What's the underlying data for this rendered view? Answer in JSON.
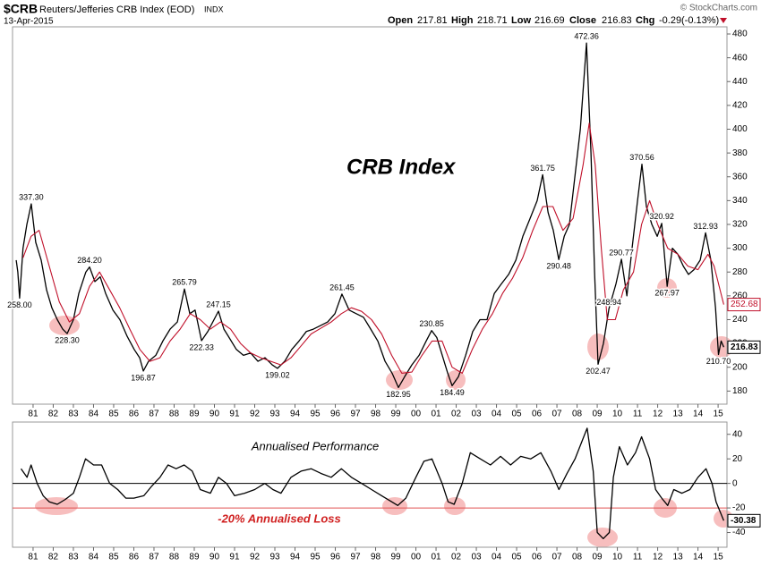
{
  "header": {
    "symbol": "$CRB",
    "name": "Reuters/Jefferies CRB Index (EOD)",
    "exchange": "INDX",
    "date": "13-Apr-2015",
    "open_label": "Open",
    "open": 217.81,
    "high_label": "High",
    "high": 218.71,
    "low_label": "Low",
    "low": 216.69,
    "close_label": "Close",
    "close": 216.83,
    "change_label": "Chg",
    "change": -0.29,
    "change_pct": {
      "value": -0.13,
      "label": "(-0.13%)"
    },
    "copyright": "© StockCharts.com"
  },
  "chart_data": [
    {
      "type": "line",
      "title": "CRB Index",
      "xlim": [
        1979.98,
        2015.44
      ],
      "ylim": [
        169,
        486
      ],
      "xticks": [
        {
          "value": 1981,
          "label": "81"
        },
        {
          "value": 1982,
          "label": "82"
        },
        {
          "value": 1983,
          "label": "83"
        },
        {
          "value": 1984,
          "label": "84"
        },
        {
          "value": 1985,
          "label": "85"
        },
        {
          "value": 1986,
          "label": "86"
        },
        {
          "value": 1987,
          "label": "87"
        },
        {
          "value": 1988,
          "label": "88"
        },
        {
          "value": 1989,
          "label": "89"
        },
        {
          "value": 1990,
          "label": "90"
        },
        {
          "value": 1991,
          "label": "91"
        },
        {
          "value": 1992,
          "label": "92"
        },
        {
          "value": 1993,
          "label": "93"
        },
        {
          "value": 1994,
          "label": "94"
        },
        {
          "value": 1995,
          "label": "95"
        },
        {
          "value": 1996,
          "label": "96"
        },
        {
          "value": 1997,
          "label": "97"
        },
        {
          "value": 1998,
          "label": "98"
        },
        {
          "value": 1999,
          "label": "99"
        },
        {
          "value": 2000,
          "label": "00"
        },
        {
          "value": 2001,
          "label": "01"
        },
        {
          "value": 2002,
          "label": "02"
        },
        {
          "value": 2003,
          "label": "03"
        },
        {
          "value": 2004,
          "label": "04"
        },
        {
          "value": 2005,
          "label": "05"
        },
        {
          "value": 2006,
          "label": "06"
        },
        {
          "value": 2007,
          "label": "07"
        },
        {
          "value": 2008,
          "label": "08"
        },
        {
          "value": 2009,
          "label": "09"
        },
        {
          "value": 2010,
          "label": "10"
        },
        {
          "value": 2011,
          "label": "11"
        },
        {
          "value": 2012,
          "label": "12"
        },
        {
          "value": 2013,
          "label": "13"
        },
        {
          "value": 2014,
          "label": "14"
        },
        {
          "value": 2015,
          "label": "15"
        }
      ],
      "yticks": [
        180,
        200,
        220,
        240,
        260,
        280,
        300,
        320,
        340,
        360,
        380,
        400,
        420,
        440,
        460,
        480
      ],
      "series": [
        {
          "color": "#000000",
          "x": [
            1980.16,
            1980.24,
            1980.33,
            1980.5,
            1980.69,
            1980.91,
            1981.13,
            1981.4,
            1981.67,
            1981.93,
            1982.2,
            1982.47,
            1982.69,
            1983.0,
            1983.27,
            1983.62,
            1983.8,
            1984.07,
            1984.33,
            1984.6,
            1984.96,
            1985.31,
            1985.67,
            1986.02,
            1986.29,
            1986.47,
            1986.73,
            1987.09,
            1987.44,
            1987.8,
            1988.16,
            1988.51,
            1988.78,
            1989.04,
            1989.36,
            1989.67,
            1990.2,
            1990.47,
            1990.73,
            1991.09,
            1991.44,
            1991.8,
            1992.16,
            1992.51,
            1992.87,
            1993.13,
            1993.49,
            1993.84,
            1994.2,
            1994.56,
            1994.91,
            1995.27,
            1995.62,
            1995.98,
            1996.33,
            1996.69,
            1997.04,
            1997.4,
            1997.76,
            1998.11,
            1998.47,
            1998.82,
            1999.13,
            1999.44,
            1999.8,
            2000.16,
            2000.51,
            2000.78,
            2001.04,
            2001.31,
            2001.58,
            2001.8,
            2002.11,
            2002.47,
            2002.82,
            2003.18,
            2003.53,
            2003.89,
            2004.24,
            2004.6,
            2004.96,
            2005.31,
            2005.67,
            2006.02,
            2006.29,
            2006.56,
            2006.82,
            2007.09,
            2007.36,
            2007.62,
            2007.89,
            2008.16,
            2008.47,
            2008.69,
            2008.87,
            2009.04,
            2009.31,
            2009.58,
            2009.93,
            2010.2,
            2010.47,
            2010.73,
            2011.0,
            2011.22,
            2011.44,
            2011.71,
            2011.98,
            2012.2,
            2012.47,
            2012.73,
            2013.0,
            2013.27,
            2013.53,
            2013.8,
            2014.11,
            2014.38,
            2014.64,
            2014.87,
            2015.02,
            2015.15,
            2015.28
          ],
          "values": [
            290,
            280,
            258,
            300,
            320,
            337.3,
            305,
            290,
            265,
            250,
            240,
            232,
            228.3,
            240,
            262,
            280,
            284.2,
            272,
            276,
            262,
            248,
            240,
            226,
            215,
            208,
            196.87,
            205,
            210,
            222,
            232,
            238,
            265.79,
            245,
            248,
            222.33,
            230,
            247.15,
            232,
            225,
            215,
            210,
            212,
            205,
            208,
            202,
            199.02,
            205,
            215,
            222,
            230,
            232,
            235,
            238,
            245,
            261.45,
            248,
            245,
            242,
            232,
            222,
            205,
            195,
            182.95,
            192,
            202,
            210,
            222,
            230.85,
            225,
            210,
            195,
            184.49,
            192,
            210,
            230,
            240,
            240,
            262,
            270,
            278,
            290,
            310,
            325,
            340,
            361.75,
            330,
            315,
            290.48,
            310,
            320,
            360,
            400,
            472.36,
            380,
            280,
            202.47,
            220,
            248.94,
            270,
            290.77,
            260,
            300,
            340,
            370.56,
            335,
            320,
            310,
            320.92,
            267.97,
            300,
            295,
            285,
            278,
            282,
            290,
            312.93,
            290,
            250,
            210.7,
            222,
            216.83
          ]
        },
        {
          "color": "#c0102a",
          "x": [
            1980.5,
            1980.9,
            1981.3,
            1981.8,
            1982.3,
            1982.8,
            1983.3,
            1983.8,
            1984.3,
            1984.8,
            1985.3,
            1985.8,
            1986.3,
            1986.8,
            1987.3,
            1987.8,
            1988.3,
            1988.8,
            1989.3,
            1989.8,
            1990.3,
            1990.8,
            1991.3,
            1991.8,
            1992.3,
            1992.8,
            1993.3,
            1993.8,
            1994.3,
            1994.8,
            1995.3,
            1995.8,
            1996.3,
            1996.8,
            1997.3,
            1997.8,
            1998.3,
            1998.8,
            1999.3,
            1999.8,
            2000.3,
            2000.8,
            2001.3,
            2001.8,
            2002.3,
            2002.8,
            2003.3,
            2003.8,
            2004.3,
            2004.8,
            2005.3,
            2005.8,
            2006.3,
            2006.8,
            2007.3,
            2007.8,
            2008.3,
            2008.6,
            2008.9,
            2009.2,
            2009.5,
            2009.9,
            2010.3,
            2010.8,
            2011.2,
            2011.6,
            2012.0,
            2012.5,
            2013.0,
            2013.5,
            2014.0,
            2014.5,
            2014.8,
            2015.28
          ],
          "values": [
            292,
            310,
            315,
            285,
            255,
            238,
            245,
            268,
            280,
            265,
            250,
            232,
            215,
            205,
            208,
            222,
            232,
            245,
            240,
            232,
            238,
            232,
            220,
            212,
            208,
            205,
            202,
            208,
            218,
            228,
            233,
            238,
            245,
            250,
            247,
            240,
            228,
            210,
            195,
            196,
            210,
            222,
            222,
            200,
            195,
            215,
            232,
            245,
            262,
            275,
            292,
            315,
            335,
            335,
            315,
            325,
            370,
            405,
            370,
            300,
            240,
            240,
            265,
            280,
            320,
            340,
            320,
            300,
            295,
            285,
            282,
            295,
            285,
            252.68
          ]
        }
      ],
      "extremes": {
        "x": [
          1980.33,
          1980.91,
          1982.69,
          1983.8,
          1986.47,
          1988.51,
          1989.36,
          1990.2,
          1993.13,
          1996.33,
          1999.13,
          2000.78,
          2001.8,
          2006.29,
          2007.09,
          2008.47,
          2009.04,
          2009.58,
          2010.2,
          2011.22,
          2012.2,
          2012.47,
          2014.38,
          2015.02
        ],
        "values": [
          258,
          337.3,
          228.3,
          284.2,
          196.87,
          265.79,
          222.33,
          247.15,
          199.02,
          261.45,
          182.95,
          230.85,
          184.49,
          361.75,
          290.48,
          472.36,
          202.47,
          248.94,
          290.77,
          370.56,
          320.92,
          267.97,
          312.93,
          210.7
        ],
        "value_labels": [
          "258.00",
          "337.30",
          "228.30",
          "284.20",
          "196.87",
          "265.79",
          "222.33",
          "247.15",
          "199.02",
          "261.45",
          "182.95",
          "230.85",
          "184.49",
          "361.75",
          "290.48",
          "472.36",
          "202.47",
          "248.94",
          "290.77",
          "370.56",
          "320.92",
          "267.97",
          "312.93",
          "210.70"
        ]
      }
    },
    {
      "type": "line",
      "title": "Annualised Performance",
      "annotation": "-20% Annualised Loss",
      "xlim": [
        1979.98,
        2015.44
      ],
      "ylim": [
        -52,
        50
      ],
      "xticks": [
        {
          "value": 1981,
          "label": "81"
        },
        {
          "value": 1982,
          "label": "82"
        },
        {
          "value": 1983,
          "label": "83"
        },
        {
          "value": 1984,
          "label": "84"
        },
        {
          "value": 1985,
          "label": "85"
        },
        {
          "value": 1986,
          "label": "86"
        },
        {
          "value": 1987,
          "label": "87"
        },
        {
          "value": 1988,
          "label": "88"
        },
        {
          "value": 1989,
          "label": "89"
        },
        {
          "value": 1990,
          "label": "90"
        },
        {
          "value": 1991,
          "label": "91"
        },
        {
          "value": 1992,
          "label": "92"
        },
        {
          "value": 1993,
          "label": "93"
        },
        {
          "value": 1994,
          "label": "94"
        },
        {
          "value": 1995,
          "label": "95"
        },
        {
          "value": 1996,
          "label": "96"
        },
        {
          "value": 1997,
          "label": "97"
        },
        {
          "value": 1998,
          "label": "98"
        },
        {
          "value": 1999,
          "label": "99"
        },
        {
          "value": 2000,
          "label": "00"
        },
        {
          "value": 2001,
          "label": "01"
        },
        {
          "value": 2002,
          "label": "02"
        },
        {
          "value": 2003,
          "label": "03"
        },
        {
          "value": 2004,
          "label": "04"
        },
        {
          "value": 2005,
          "label": "05"
        },
        {
          "value": 2006,
          "label": "06"
        },
        {
          "value": 2007,
          "label": "07"
        },
        {
          "value": 2008,
          "label": "08"
        },
        {
          "value": 2009,
          "label": "09"
        },
        {
          "value": 2010,
          "label": "10"
        },
        {
          "value": 2011,
          "label": "11"
        },
        {
          "value": 2012,
          "label": "12"
        },
        {
          "value": 2013,
          "label": "13"
        },
        {
          "value": 2014,
          "label": "14"
        },
        {
          "value": 2015,
          "label": "15"
        }
      ],
      "yticks": [
        -40,
        -20,
        0,
        20,
        40
      ],
      "reference_lines": [
        {
          "value": 0,
          "color": "#000000"
        },
        {
          "value": -20,
          "color": "#e05050"
        }
      ],
      "series": [
        {
          "color": "#000000",
          "x": [
            1980.4,
            1980.7,
            1980.9,
            1981.2,
            1981.5,
            1981.8,
            1982.2,
            1982.6,
            1983.0,
            1983.3,
            1983.6,
            1984.0,
            1984.4,
            1984.8,
            1985.2,
            1985.6,
            1986.0,
            1986.5,
            1986.9,
            1987.3,
            1987.7,
            1988.1,
            1988.5,
            1988.9,
            1989.3,
            1989.8,
            1990.2,
            1990.6,
            1991.0,
            1991.5,
            1992.0,
            1992.5,
            1992.9,
            1993.3,
            1993.8,
            1994.3,
            1994.8,
            1995.3,
            1995.8,
            1996.3,
            1996.8,
            1997.3,
            1997.8,
            1998.3,
            1998.8,
            1999.1,
            1999.5,
            2000.0,
            2000.4,
            2000.8,
            2001.3,
            2001.6,
            2001.9,
            2002.3,
            2002.7,
            2003.2,
            2003.7,
            2004.2,
            2004.7,
            2005.2,
            2005.7,
            2006.2,
            2006.7,
            2007.1,
            2007.5,
            2007.9,
            2008.5,
            2008.8,
            2009.0,
            2009.3,
            2009.6,
            2009.8,
            2010.1,
            2010.5,
            2010.9,
            2011.2,
            2011.6,
            2011.9,
            2012.2,
            2012.5,
            2012.8,
            2013.2,
            2013.6,
            2014.0,
            2014.4,
            2014.7,
            2014.9,
            2015.28
          ],
          "values": [
            12,
            5,
            15,
            0,
            -10,
            -15,
            -17,
            -13,
            -8,
            5,
            20,
            15,
            15,
            0,
            -5,
            -12,
            -12,
            -10,
            -2,
            5,
            15,
            12,
            15,
            10,
            -5,
            -8,
            5,
            0,
            -10,
            -8,
            -5,
            0,
            -5,
            -8,
            5,
            10,
            12,
            8,
            5,
            12,
            5,
            0,
            -5,
            -10,
            -15,
            -18,
            -12,
            5,
            18,
            20,
            0,
            -15,
            -17,
            0,
            25,
            20,
            15,
            22,
            15,
            22,
            20,
            25,
            10,
            -5,
            8,
            20,
            45,
            10,
            -40,
            -45,
            -40,
            5,
            30,
            15,
            25,
            38,
            20,
            -5,
            -12,
            -18,
            -5,
            -8,
            -5,
            5,
            12,
            0,
            -15,
            -30.38
          ]
        }
      ]
    }
  ]
}
